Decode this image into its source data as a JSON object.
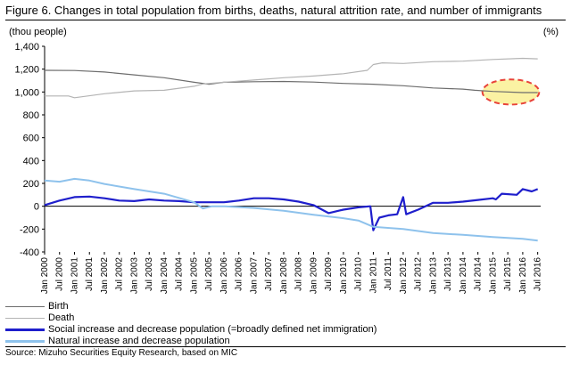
{
  "figure": {
    "title": "Figure 6. Changes in total population from births, deaths, natural attrition rate, and number of immigrants",
    "left_unit": "(thou people)",
    "right_unit": "(%)",
    "source": "Source: Mizuho Securities Equity Research, based on MIC"
  },
  "chart_data": {
    "type": "line",
    "ylim": [
      -400,
      1400
    ],
    "yticks": [
      "1,400",
      "1,200",
      "1,000",
      "800",
      "600",
      "400",
      "200",
      "0",
      "-200",
      "-400"
    ],
    "ytick_values": [
      1400,
      1200,
      1000,
      800,
      600,
      400,
      200,
      0,
      -200,
      -400
    ],
    "xticks": [
      "Jan 2000",
      "Jul 2000",
      "Jan 2001",
      "Jul 2001",
      "Jan 2002",
      "Jul 2002",
      "Jan 2003",
      "Jul 2003",
      "Jan 2004",
      "Jul 2004",
      "Jan 2005",
      "Jul 2005",
      "Jan 2006",
      "Jul 2006",
      "Jan 2007",
      "Jul 2007",
      "Jan 2008",
      "Jul 2008",
      "Jan 2009",
      "Jul 2009",
      "Jan 2010",
      "Jul 2010",
      "Jan 2011",
      "Jul 2011",
      "Jan 2012",
      "Jul 2012",
      "Jan 2013",
      "Jul 2013",
      "Jan 2014",
      "Jul 2014",
      "Jan 2015",
      "Jul 2015",
      "Jan 2016",
      "Jul 2016"
    ],
    "xrange": [
      2000.0,
      2016.6
    ],
    "grid": false,
    "legend_position": "bottom",
    "series": [
      {
        "name": "Birth",
        "color": "#6d6d6d",
        "width": 1.2,
        "points": [
          [
            2000.0,
            1190
          ],
          [
            2001.0,
            1188
          ],
          [
            2002.0,
            1175
          ],
          [
            2003.0,
            1150
          ],
          [
            2004.0,
            1125
          ],
          [
            2005.0,
            1085
          ],
          [
            2005.5,
            1068
          ],
          [
            2006.0,
            1085
          ],
          [
            2007.0,
            1090
          ],
          [
            2008.0,
            1092
          ],
          [
            2009.0,
            1087
          ],
          [
            2010.0,
            1075
          ],
          [
            2011.0,
            1068
          ],
          [
            2012.0,
            1055
          ],
          [
            2013.0,
            1035
          ],
          [
            2014.0,
            1025
          ],
          [
            2014.4,
            1015
          ],
          [
            2015.0,
            1005
          ],
          [
            2016.0,
            995
          ],
          [
            2016.5,
            995
          ]
        ]
      },
      {
        "name": "Death",
        "color": "#b4b4b4",
        "width": 1.2,
        "points": [
          [
            2000.0,
            965
          ],
          [
            2000.8,
            965
          ],
          [
            2001.0,
            950
          ],
          [
            2002.0,
            985
          ],
          [
            2003.0,
            1010
          ],
          [
            2004.0,
            1015
          ],
          [
            2005.0,
            1050
          ],
          [
            2005.3,
            1070
          ],
          [
            2006.0,
            1085
          ],
          [
            2007.0,
            1105
          ],
          [
            2008.0,
            1125
          ],
          [
            2009.0,
            1140
          ],
          [
            2010.0,
            1160
          ],
          [
            2010.8,
            1190
          ],
          [
            2011.0,
            1240
          ],
          [
            2011.3,
            1255
          ],
          [
            2012.0,
            1250
          ],
          [
            2013.0,
            1265
          ],
          [
            2014.0,
            1270
          ],
          [
            2015.0,
            1285
          ],
          [
            2016.0,
            1295
          ],
          [
            2016.5,
            1290
          ]
        ]
      },
      {
        "name": "Social increase and decrease population (=broadly defined net immigration)",
        "color": "#1f1fcc",
        "width": 2.2,
        "points": [
          [
            2000.0,
            10
          ],
          [
            2000.5,
            50
          ],
          [
            2001.0,
            80
          ],
          [
            2001.5,
            85
          ],
          [
            2002.0,
            70
          ],
          [
            2002.5,
            50
          ],
          [
            2003.0,
            45
          ],
          [
            2003.5,
            60
          ],
          [
            2004.0,
            50
          ],
          [
            2004.5,
            45
          ],
          [
            2005.0,
            35
          ],
          [
            2005.5,
            35
          ],
          [
            2006.0,
            35
          ],
          [
            2006.5,
            50
          ],
          [
            2007.0,
            70
          ],
          [
            2007.5,
            70
          ],
          [
            2008.0,
            60
          ],
          [
            2008.5,
            40
          ],
          [
            2009.0,
            10
          ],
          [
            2009.5,
            -60
          ],
          [
            2010.0,
            -30
          ],
          [
            2010.5,
            -10
          ],
          [
            2010.9,
            0
          ],
          [
            2011.0,
            -210
          ],
          [
            2011.2,
            -100
          ],
          [
            2011.5,
            -80
          ],
          [
            2011.8,
            -70
          ],
          [
            2012.0,
            80
          ],
          [
            2012.1,
            -70
          ],
          [
            2012.5,
            -30
          ],
          [
            2013.0,
            30
          ],
          [
            2013.5,
            30
          ],
          [
            2014.0,
            40
          ],
          [
            2014.5,
            55
          ],
          [
            2015.0,
            70
          ],
          [
            2015.1,
            60
          ],
          [
            2015.3,
            110
          ],
          [
            2015.8,
            100
          ],
          [
            2016.0,
            150
          ],
          [
            2016.3,
            130
          ],
          [
            2016.5,
            150
          ]
        ]
      },
      {
        "name": "Natural increase and decrease population",
        "color": "#8ec2ec",
        "width": 2.0,
        "points": [
          [
            2000.0,
            225
          ],
          [
            2000.5,
            215
          ],
          [
            2001.0,
            240
          ],
          [
            2001.5,
            225
          ],
          [
            2002.0,
            195
          ],
          [
            2003.0,
            150
          ],
          [
            2004.0,
            110
          ],
          [
            2005.0,
            35
          ],
          [
            2005.3,
            -20
          ],
          [
            2005.6,
            0
          ],
          [
            2006.0,
            0
          ],
          [
            2007.0,
            -15
          ],
          [
            2008.0,
            -40
          ],
          [
            2009.0,
            -75
          ],
          [
            2010.0,
            -105
          ],
          [
            2010.5,
            -125
          ],
          [
            2011.0,
            -180
          ],
          [
            2012.0,
            -200
          ],
          [
            2013.0,
            -235
          ],
          [
            2014.0,
            -250
          ],
          [
            2015.0,
            -270
          ],
          [
            2016.0,
            -285
          ],
          [
            2016.5,
            -300
          ]
        ]
      }
    ],
    "annotation": {
      "shape": "dashed-ellipse",
      "color": "#e8433a",
      "fill": "#fbf2a3",
      "center": [
        2015.6,
        1000
      ],
      "radius_x_years": 0.95,
      "radius_y_value": 110
    }
  }
}
